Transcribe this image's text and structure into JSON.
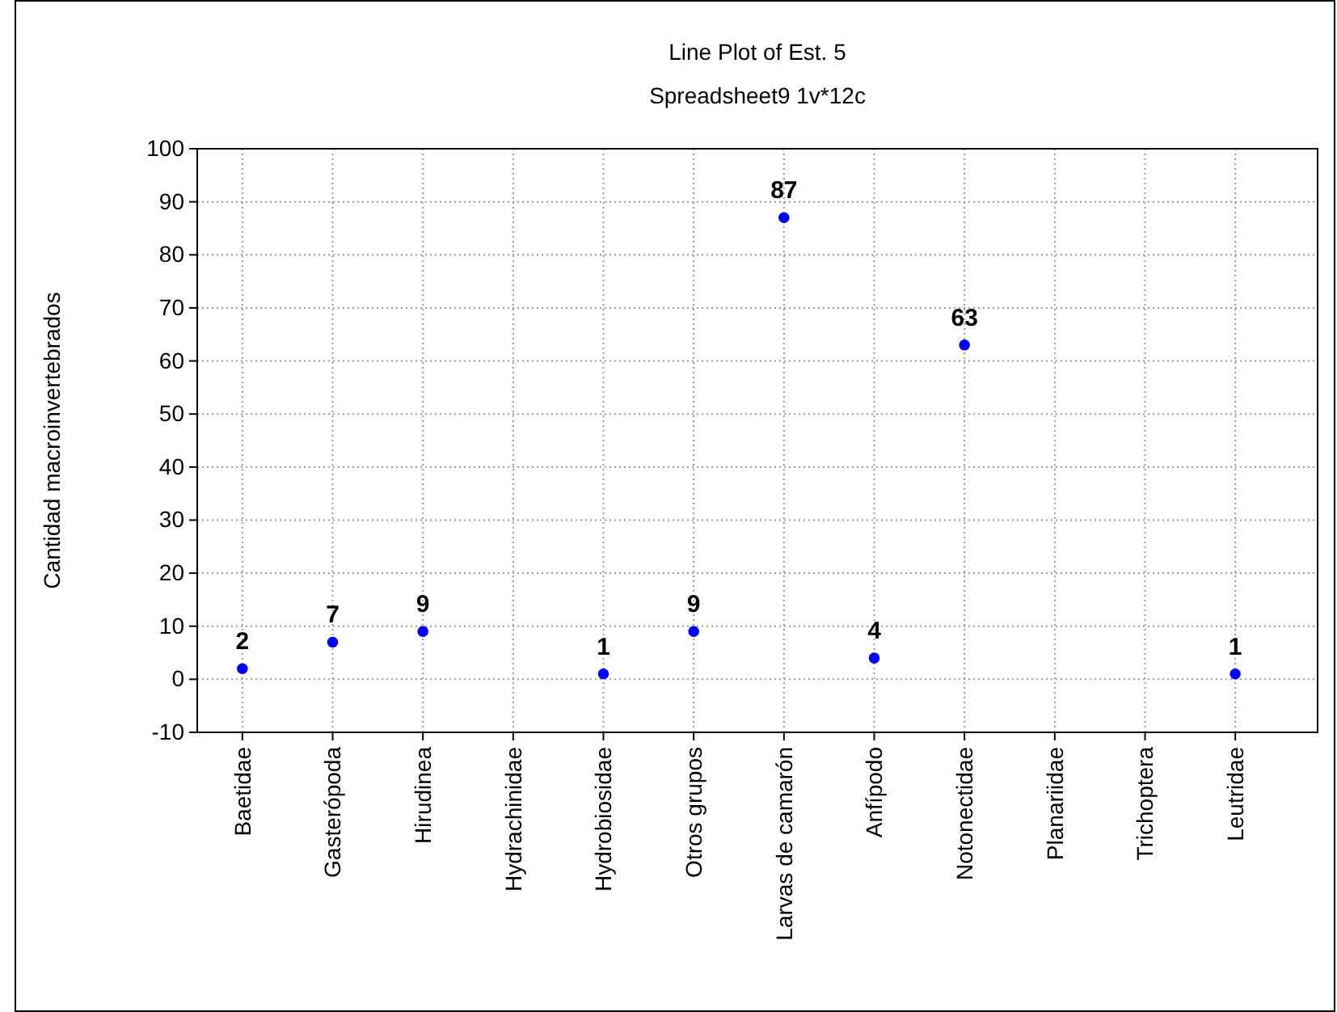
{
  "chart_data": {
    "type": "scatter",
    "title": "Line Plot of Est. 5",
    "subtitle": "Spreadsheet9 1v*12c",
    "ylabel": "Cantidad macroinvertebrados",
    "categories": [
      "Baetidae",
      "Gasterópoda",
      "Hirudinea",
      "Hydrachinidae",
      "Hydrobiosidae",
      "Otros grupos",
      "Larvas de camarón",
      "Anfípodo",
      "Notonectidae",
      "Planariidae",
      "Trichoptera",
      "Leutridae"
    ],
    "series": [
      {
        "color": "#0000ff",
        "values": [
          2,
          7,
          9,
          null,
          1,
          9,
          87,
          4,
          63,
          null,
          null,
          1
        ]
      }
    ],
    "ylim": [
      -10,
      100
    ],
    "yticks": [
      -10,
      0,
      10,
      20,
      30,
      40,
      50,
      60,
      70,
      80,
      90,
      100
    ],
    "grid": true,
    "marker": "circle",
    "data_labels": true
  }
}
